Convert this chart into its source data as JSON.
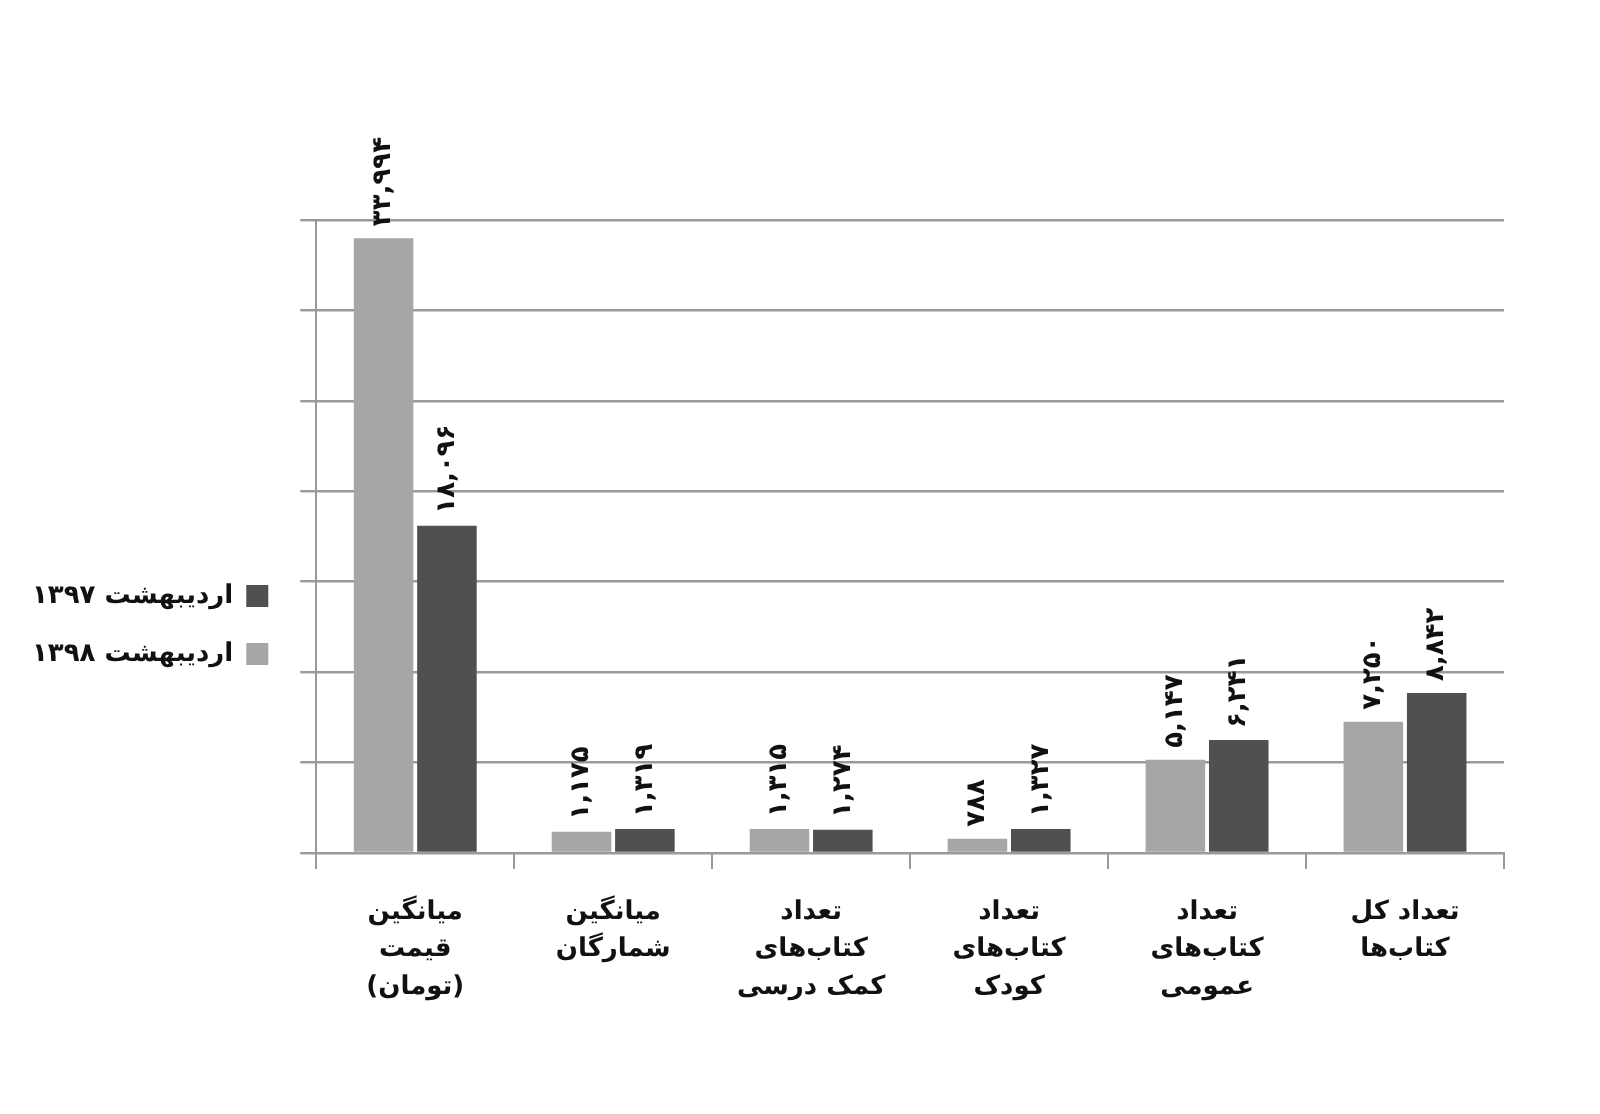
{
  "chart_data": {
    "type": "bar",
    "categories": [
      "میانگین قیمت (تومان)",
      "میانگین شمارگان",
      "تعداد کتاب‌های کمک درسی",
      "تعداد کتاب‌های کودک",
      "تعداد کتاب‌های عمومی",
      "تعداد کل کتاب‌ها"
    ],
    "series": [
      {
        "name": "اردیبهشت ۱۳۹۸",
        "color": "#a6a6a6",
        "values": [
          33994,
          1175,
          1315,
          788,
          5147,
          7250
        ],
        "value_labels": [
          "۳۳,۹۹۴",
          "۱,۱۷۵",
          "۱,۳۱۵",
          "۷۸۸",
          "۵,۱۴۷",
          "۷,۲۵۰"
        ]
      },
      {
        "name": "اردیبهشت ۱۳۹۷",
        "color": "#505050",
        "values": [
          18096,
          1319,
          1274,
          1327,
          6241,
          8842
        ],
        "value_labels": [
          "۱۸,۰۹۶",
          "۱,۳۱۹",
          "۱,۲۷۴",
          "۱,۳۲۷",
          "۶,۲۴۱",
          "۸,۸۴۲"
        ]
      }
    ],
    "ylim": [
      0,
      35000
    ],
    "yticks": [
      {
        "value": 0,
        "label": null
      },
      {
        "value": 5000,
        "label": null
      },
      {
        "value": 10000,
        "label": null
      },
      {
        "value": 15000,
        "label": null
      },
      {
        "value": 20000,
        "label": null
      },
      {
        "value": 25000,
        "label": null
      },
      {
        "value": 30000,
        "label": null
      },
      {
        "value": 35000,
        "label": null
      }
    ],
    "grid": "y",
    "legend": "left",
    "tick_labels": "x"
  }
}
